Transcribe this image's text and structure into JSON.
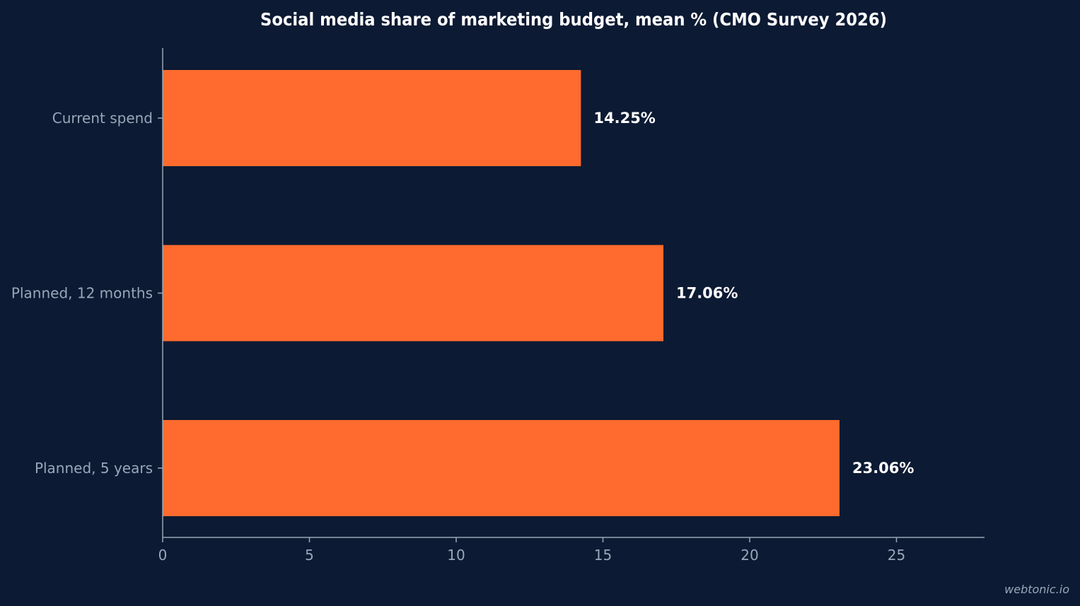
{
  "colors": {
    "background": "#0c1a33",
    "bar": "#ff6b2e",
    "axis": "#9aa6b8",
    "text_primary": "#ffffff",
    "text_secondary": "#9aa6b8"
  },
  "watermark": "webtonic.io",
  "chart_data": {
    "type": "bar",
    "orientation": "horizontal",
    "title": "Social media share of marketing budget, mean % (CMO Survey 2026)",
    "xlabel": "",
    "ylabel": "",
    "categories": [
      "Current spend",
      "Planned, 12 months",
      "Planned, 5 years"
    ],
    "values": [
      14.25,
      17.06,
      23.06
    ],
    "value_labels": [
      "14.25%",
      "17.06%",
      "23.06%"
    ],
    "x_ticks": [
      0,
      5,
      10,
      15,
      20,
      25
    ],
    "x_tick_labels": [
      "0",
      "5",
      "10",
      "15",
      "20",
      "25"
    ],
    "xlim": [
      0,
      28
    ],
    "grid": false,
    "legend": "none"
  }
}
